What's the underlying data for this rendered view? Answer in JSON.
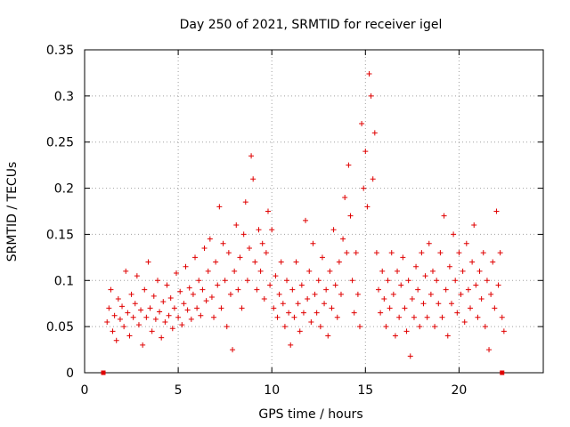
{
  "chart_data": {
    "type": "scatter",
    "title": "Day 250 of 2021, SRMTID for receiver igel",
    "xlabel": "GPS time / hours",
    "ylabel": "SRMTID / TECUs",
    "xlim": [
      0,
      24.5
    ],
    "ylim": [
      0,
      0.35
    ],
    "xticks": [
      0,
      5,
      10,
      15,
      20
    ],
    "xtick_labels": [
      "0",
      "5",
      "10",
      "15",
      "20"
    ],
    "yticks": [
      0,
      0.05,
      0.1,
      0.15,
      0.2,
      0.25,
      0.3,
      0.35
    ],
    "ytick_labels": [
      "0",
      "0.05",
      "0.1",
      "0.15",
      "0.2",
      "0.25",
      "0.3",
      "0.35"
    ],
    "grid": true,
    "marker": "plus",
    "color": "#e00000",
    "series": [
      {
        "name": "SRMTID",
        "points": [
          [
            1.2,
            0.055
          ],
          [
            1.3,
            0.07
          ],
          [
            1.4,
            0.09
          ],
          [
            1.5,
            0.045
          ],
          [
            1.6,
            0.062
          ],
          [
            1.7,
            0.035
          ],
          [
            1.8,
            0.08
          ],
          [
            1.9,
            0.058
          ],
          [
            2.0,
            0.072
          ],
          [
            2.1,
            0.05
          ],
          [
            2.2,
            0.11
          ],
          [
            2.3,
            0.065
          ],
          [
            2.4,
            0.04
          ],
          [
            2.5,
            0.085
          ],
          [
            2.6,
            0.06
          ],
          [
            2.7,
            0.075
          ],
          [
            2.8,
            0.105
          ],
          [
            2.9,
            0.052
          ],
          [
            3.0,
            0.068
          ],
          [
            3.1,
            0.03
          ],
          [
            3.2,
            0.09
          ],
          [
            3.3,
            0.06
          ],
          [
            3.4,
            0.12
          ],
          [
            3.5,
            0.07
          ],
          [
            3.6,
            0.045
          ],
          [
            3.7,
            0.083
          ],
          [
            3.8,
            0.058
          ],
          [
            3.9,
            0.1
          ],
          [
            4.0,
            0.066
          ],
          [
            4.1,
            0.038
          ],
          [
            4.2,
            0.077
          ],
          [
            4.3,
            0.055
          ],
          [
            4.4,
            0.095
          ],
          [
            4.5,
            0.062
          ],
          [
            4.6,
            0.081
          ],
          [
            4.7,
            0.048
          ],
          [
            4.8,
            0.07
          ],
          [
            4.9,
            0.108
          ],
          [
            5.0,
            0.06
          ],
          [
            5.1,
            0.088
          ],
          [
            5.2,
            0.052
          ],
          [
            5.3,
            0.075
          ],
          [
            5.4,
            0.115
          ],
          [
            5.5,
            0.068
          ],
          [
            5.6,
            0.092
          ],
          [
            5.7,
            0.058
          ],
          [
            5.8,
            0.085
          ],
          [
            5.9,
            0.125
          ],
          [
            6.0,
            0.07
          ],
          [
            6.1,
            0.1
          ],
          [
            6.2,
            0.062
          ],
          [
            6.3,
            0.09
          ],
          [
            6.4,
            0.135
          ],
          [
            6.5,
            0.078
          ],
          [
            6.6,
            0.11
          ],
          [
            6.7,
            0.145
          ],
          [
            6.8,
            0.082
          ],
          [
            6.9,
            0.06
          ],
          [
            7.0,
            0.12
          ],
          [
            7.1,
            0.095
          ],
          [
            7.2,
            0.18
          ],
          [
            7.3,
            0.07
          ],
          [
            7.4,
            0.14
          ],
          [
            7.5,
            0.1
          ],
          [
            7.6,
            0.05
          ],
          [
            7.7,
            0.13
          ],
          [
            7.8,
            0.085
          ],
          [
            7.9,
            0.025
          ],
          [
            8.0,
            0.11
          ],
          [
            8.1,
            0.16
          ],
          [
            8.2,
            0.09
          ],
          [
            8.3,
            0.125
          ],
          [
            8.4,
            0.07
          ],
          [
            8.5,
            0.15
          ],
          [
            8.6,
            0.185
          ],
          [
            8.7,
            0.1
          ],
          [
            8.8,
            0.135
          ],
          [
            8.9,
            0.235
          ],
          [
            9.0,
            0.21
          ],
          [
            9.1,
            0.12
          ],
          [
            9.2,
            0.09
          ],
          [
            9.3,
            0.155
          ],
          [
            9.4,
            0.11
          ],
          [
            9.5,
            0.14
          ],
          [
            9.6,
            0.08
          ],
          [
            9.7,
            0.13
          ],
          [
            9.8,
            0.175
          ],
          [
            9.9,
            0.095
          ],
          [
            10.0,
            0.155
          ],
          [
            10.1,
            0.07
          ],
          [
            10.2,
            0.105
          ],
          [
            10.3,
            0.06
          ],
          [
            10.4,
            0.085
          ],
          [
            10.5,
            0.12
          ],
          [
            10.6,
            0.075
          ],
          [
            10.7,
            0.05
          ],
          [
            10.8,
            0.1
          ],
          [
            10.9,
            0.065
          ],
          [
            11.0,
            0.03
          ],
          [
            11.1,
            0.09
          ],
          [
            11.2,
            0.06
          ],
          [
            11.3,
            0.12
          ],
          [
            11.4,
            0.075
          ],
          [
            11.5,
            0.045
          ],
          [
            11.6,
            0.095
          ],
          [
            11.7,
            0.065
          ],
          [
            11.8,
            0.165
          ],
          [
            11.9,
            0.08
          ],
          [
            12.0,
            0.11
          ],
          [
            12.1,
            0.055
          ],
          [
            12.2,
            0.14
          ],
          [
            12.3,
            0.085
          ],
          [
            12.4,
            0.065
          ],
          [
            12.5,
            0.1
          ],
          [
            12.6,
            0.05
          ],
          [
            12.7,
            0.125
          ],
          [
            12.8,
            0.075
          ],
          [
            12.9,
            0.09
          ],
          [
            13.0,
            0.04
          ],
          [
            13.1,
            0.11
          ],
          [
            13.2,
            0.07
          ],
          [
            13.3,
            0.155
          ],
          [
            13.4,
            0.095
          ],
          [
            13.5,
            0.06
          ],
          [
            13.6,
            0.12
          ],
          [
            13.7,
            0.085
          ],
          [
            13.8,
            0.145
          ],
          [
            13.9,
            0.19
          ],
          [
            14.0,
            0.13
          ],
          [
            14.1,
            0.225
          ],
          [
            14.2,
            0.17
          ],
          [
            14.3,
            0.1
          ],
          [
            14.4,
            0.065
          ],
          [
            14.5,
            0.13
          ],
          [
            14.6,
            0.085
          ],
          [
            14.7,
            0.05
          ],
          [
            14.8,
            0.27
          ],
          [
            14.9,
            0.2
          ],
          [
            15.0,
            0.24
          ],
          [
            15.1,
            0.18
          ],
          [
            15.2,
            0.324
          ],
          [
            15.3,
            0.3
          ],
          [
            15.4,
            0.21
          ],
          [
            15.5,
            0.26
          ],
          [
            15.6,
            0.13
          ],
          [
            15.7,
            0.09
          ],
          [
            15.8,
            0.065
          ],
          [
            15.9,
            0.11
          ],
          [
            16.0,
            0.08
          ],
          [
            16.1,
            0.05
          ],
          [
            16.2,
            0.1
          ],
          [
            16.3,
            0.07
          ],
          [
            16.4,
            0.13
          ],
          [
            16.5,
            0.085
          ],
          [
            16.6,
            0.04
          ],
          [
            16.7,
            0.11
          ],
          [
            16.8,
            0.06
          ],
          [
            16.9,
            0.095
          ],
          [
            17.0,
            0.125
          ],
          [
            17.1,
            0.07
          ],
          [
            17.2,
            0.045
          ],
          [
            17.3,
            0.1
          ],
          [
            17.4,
            0.018
          ],
          [
            17.5,
            0.08
          ],
          [
            17.6,
            0.06
          ],
          [
            17.7,
            0.115
          ],
          [
            17.8,
            0.09
          ],
          [
            17.9,
            0.05
          ],
          [
            18.0,
            0.13
          ],
          [
            18.1,
            0.075
          ],
          [
            18.2,
            0.105
          ],
          [
            18.3,
            0.06
          ],
          [
            18.4,
            0.14
          ],
          [
            18.5,
            0.085
          ],
          [
            18.6,
            0.11
          ],
          [
            18.7,
            0.05
          ],
          [
            18.8,
            0.1
          ],
          [
            18.9,
            0.075
          ],
          [
            19.0,
            0.13
          ],
          [
            19.1,
            0.06
          ],
          [
            19.2,
            0.17
          ],
          [
            19.3,
            0.09
          ],
          [
            19.4,
            0.04
          ],
          [
            19.5,
            0.115
          ],
          [
            19.6,
            0.075
          ],
          [
            19.7,
            0.15
          ],
          [
            19.8,
            0.1
          ],
          [
            19.9,
            0.065
          ],
          [
            20.0,
            0.13
          ],
          [
            20.1,
            0.085
          ],
          [
            20.2,
            0.11
          ],
          [
            20.3,
            0.055
          ],
          [
            20.4,
            0.14
          ],
          [
            20.5,
            0.09
          ],
          [
            20.6,
            0.07
          ],
          [
            20.7,
            0.12
          ],
          [
            20.8,
            0.16
          ],
          [
            20.9,
            0.095
          ],
          [
            21.0,
            0.06
          ],
          [
            21.1,
            0.11
          ],
          [
            21.2,
            0.08
          ],
          [
            21.3,
            0.13
          ],
          [
            21.4,
            0.05
          ],
          [
            21.5,
            0.1
          ],
          [
            21.6,
            0.025
          ],
          [
            21.7,
            0.085
          ],
          [
            21.8,
            0.12
          ],
          [
            21.9,
            0.07
          ],
          [
            22.0,
            0.175
          ],
          [
            22.1,
            0.095
          ],
          [
            22.2,
            0.13
          ],
          [
            22.3,
            0.06
          ],
          [
            22.4,
            0.045
          ]
        ]
      }
    ],
    "zero_markers": [
      1.0,
      22.3
    ]
  }
}
